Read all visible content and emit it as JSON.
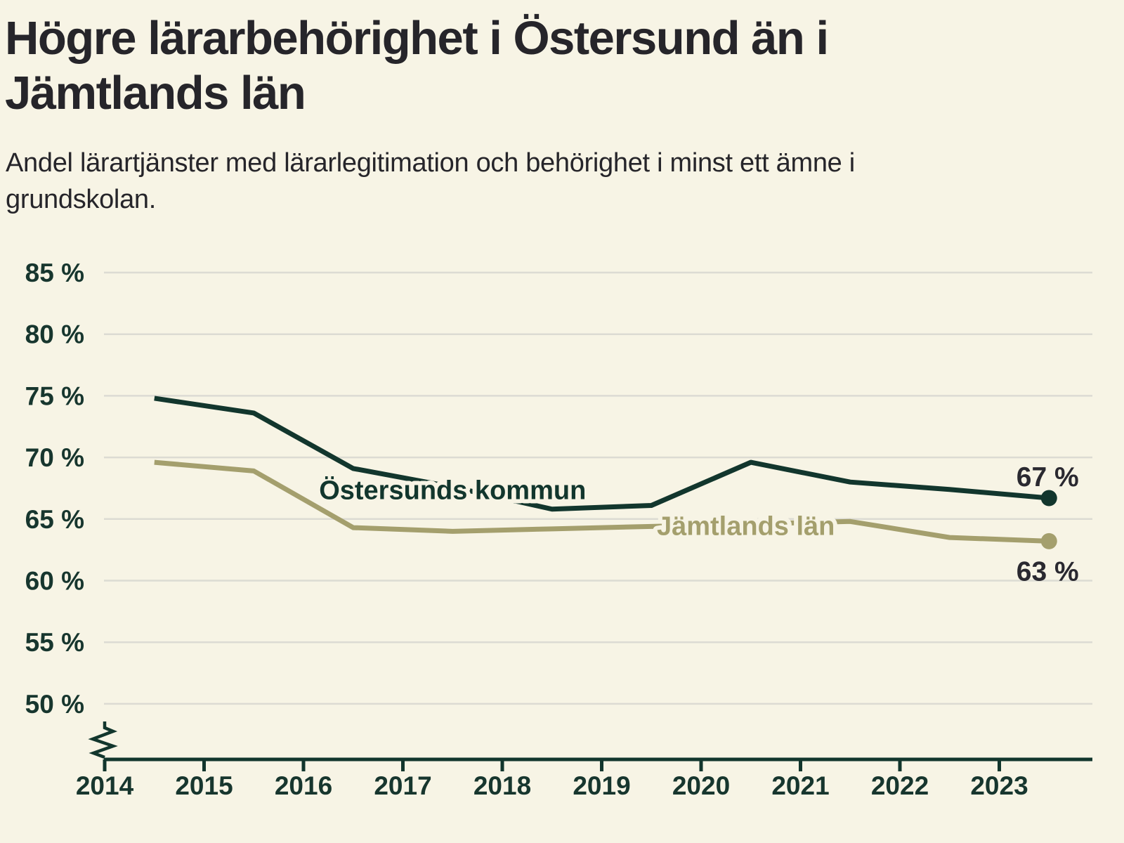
{
  "header": {
    "title_lines": [
      "Högre lärarbehörighet i Östersund än i",
      "Jämtlands län"
    ],
    "subtitle_lines": [
      "Andel lärartjänster med lärarlegitimation och behörighet i minst ett ämne i",
      "grundskolan."
    ]
  },
  "chart_data": {
    "type": "line",
    "title": "Högre lärarbehörighet i Östersund än i Jämtlands län",
    "subtitle": "Andel lärartjänster med lärarlegitimation och behörighet i minst ett ämne i grundskolan.",
    "xlim": [
      2014,
      2024
    ],
    "x_points": [
      2014.5,
      2015.5,
      2016.5,
      2017.5,
      2018.5,
      2019.5,
      2020.5,
      2021.5,
      2022.5,
      2023.5
    ],
    "xticks": [
      {
        "value": 2014,
        "label": "2014"
      },
      {
        "value": 2015,
        "label": "2015"
      },
      {
        "value": 2016,
        "label": "2016"
      },
      {
        "value": 2017,
        "label": "2017"
      },
      {
        "value": 2018,
        "label": "2018"
      },
      {
        "value": 2019,
        "label": "2019"
      },
      {
        "value": 2020,
        "label": "2020"
      },
      {
        "value": 2021,
        "label": "2021"
      },
      {
        "value": 2022,
        "label": "2022"
      },
      {
        "value": 2023,
        "label": "2023"
      }
    ],
    "yticks": [
      {
        "value": 85,
        "label": "85 %"
      },
      {
        "value": 80,
        "label": "80 %"
      },
      {
        "value": 75,
        "label": "75 %"
      },
      {
        "value": 70,
        "label": "70 %"
      },
      {
        "value": 65,
        "label": "65 %"
      },
      {
        "value": 60,
        "label": "60 %"
      },
      {
        "value": 55,
        "label": "55 %"
      },
      {
        "value": 50,
        "label": "50 %"
      }
    ],
    "grid": true,
    "axis_break": true,
    "legend_position": "inline-labels",
    "series": [
      {
        "name": "Östersunds kommun",
        "color": "#12362d",
        "values": [
          74.8,
          73.6,
          69.1,
          67.6,
          65.8,
          66.1,
          69.6,
          68.0,
          67.4,
          66.7
        ],
        "end_label": "67 %",
        "end_label_pos": "above",
        "label_at": {
          "x": 2017.5,
          "y": 67.35
        }
      },
      {
        "name": "Jämtlands län",
        "color": "#a49f6d",
        "values": [
          69.6,
          68.9,
          64.3,
          64.0,
          64.2,
          64.4,
          64.6,
          64.8,
          63.5,
          63.2
        ],
        "end_label": "63 %",
        "end_label_pos": "below",
        "label_at": {
          "x": 2020.45,
          "y": 64.45
        }
      }
    ],
    "style": {
      "background": "#f7f4e5",
      "grid_color": "#dcdbd3",
      "axis_color": "#12362d",
      "axis_text_color": "#17362e",
      "value_label_color": "#2a2930"
    }
  }
}
